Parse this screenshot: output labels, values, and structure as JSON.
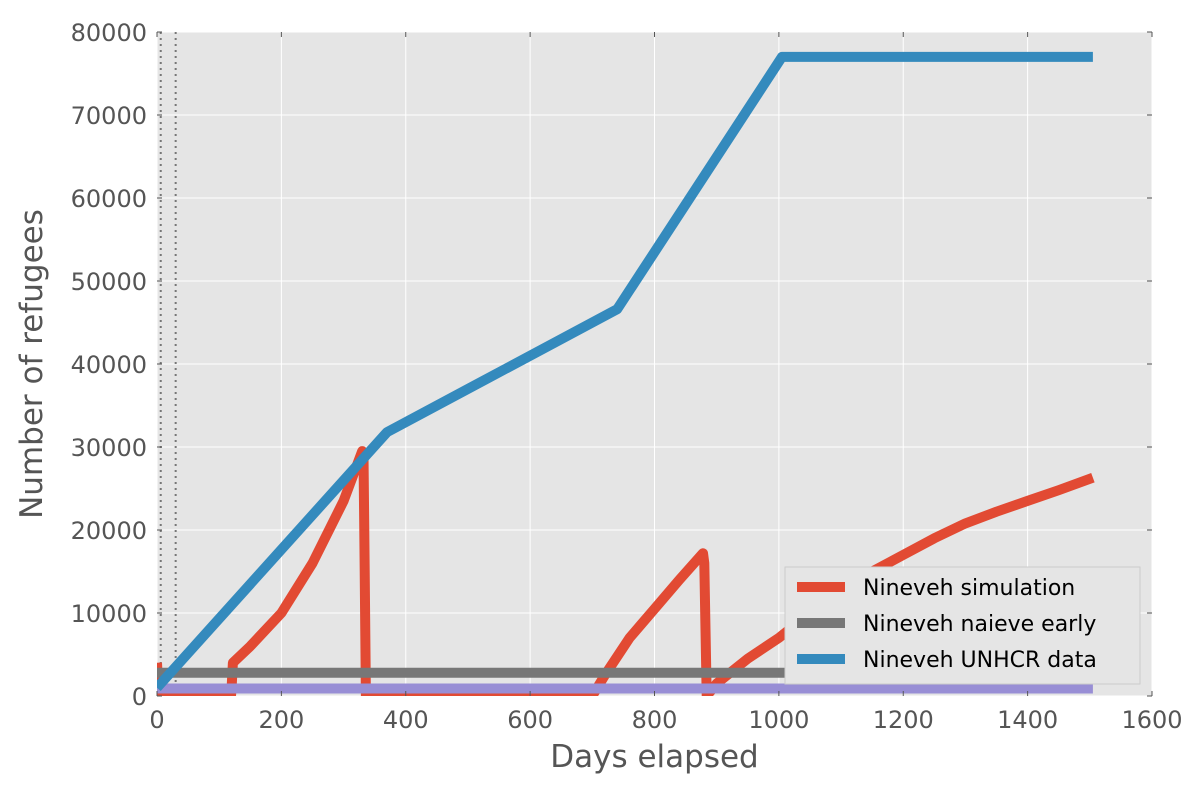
{
  "chart_data": {
    "type": "line",
    "title": "",
    "xlabel": "Days elapsed",
    "ylabel": "Number of refugees",
    "xlim": [
      0,
      1600
    ],
    "ylim": [
      0,
      80000
    ],
    "xticks": [
      0,
      200,
      400,
      600,
      800,
      1000,
      1200,
      1400,
      1600
    ],
    "yticks": [
      0,
      10000,
      20000,
      30000,
      40000,
      50000,
      60000,
      70000,
      80000
    ],
    "grid": true,
    "legend_position": "lower-right",
    "vlines": [
      6,
      30
    ],
    "series": [
      {
        "name": "Nineveh simulation",
        "color": "#E24A33",
        "in_legend": true,
        "x": [
          0,
          2,
          4,
          10,
          119,
          120,
          122,
          150,
          200,
          250,
          300,
          330,
          332,
          334,
          336,
          400,
          500,
          600,
          700,
          720,
          760,
          800,
          840,
          878,
          880,
          882,
          884,
          900,
          950,
          1000,
          1050,
          1100,
          1150,
          1200,
          1250,
          1300,
          1350,
          1400,
          1450,
          1505
        ],
        "y": [
          4000,
          1000,
          0,
          0,
          0,
          1000,
          4000,
          6000,
          10000,
          16000,
          23500,
          29500,
          29000,
          15000,
          0,
          0,
          0,
          0,
          0,
          2500,
          7000,
          10500,
          14000,
          17200,
          16000,
          8000,
          0,
          1500,
          4500,
          7000,
          10000,
          12800,
          15000,
          17000,
          19000,
          20800,
          22200,
          23500,
          24800,
          26300
        ]
      },
      {
        "name": "Nineveh naieve early",
        "color": "#777777",
        "in_legend": true,
        "x": [
          0,
          1010
        ],
        "y": [
          2800,
          2800
        ]
      },
      {
        "name": "Nineveh UNHCR data",
        "color": "#348ABD",
        "in_legend": true,
        "x": [
          0,
          370,
          740,
          1005,
          1505
        ],
        "y": [
          1000,
          31800,
          46600,
          77000,
          77000
        ]
      },
      {
        "name": "",
        "color": "#988ED5",
        "in_legend": false,
        "x": [
          0,
          1505
        ],
        "y": [
          900,
          900
        ]
      }
    ]
  }
}
